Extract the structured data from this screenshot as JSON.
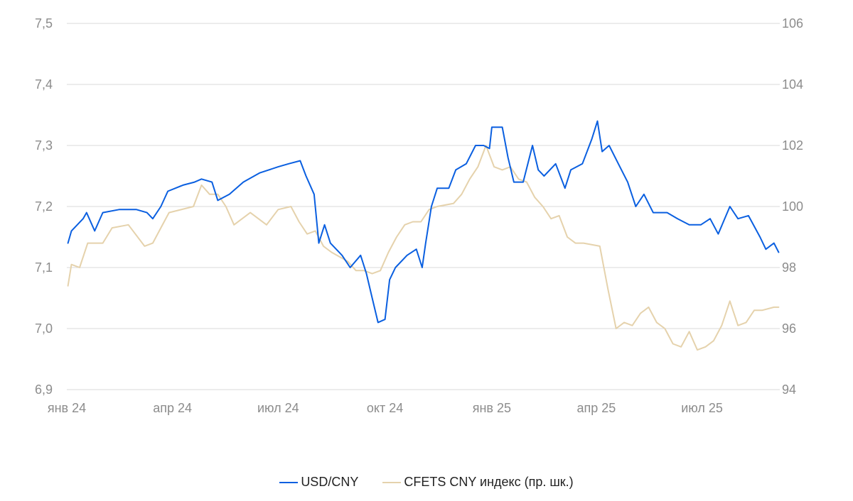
{
  "chart_data": {
    "type": "line",
    "x_ticks": [
      "янв 24",
      "апр 24",
      "июл 24",
      "окт 24",
      "янв 25",
      "апр 25",
      "июл 25"
    ],
    "y_left": {
      "ticks": [
        "7,5",
        "7,4",
        "7,3",
        "7,2",
        "7,1",
        "7,0",
        "6,9"
      ],
      "min": 6.9,
      "max": 7.5
    },
    "y_right": {
      "ticks": [
        "106",
        "104",
        "102",
        "100",
        "98",
        "96",
        "94"
      ],
      "min": 94,
      "max": 106
    },
    "grid": true,
    "legend_position": "bottom",
    "series": [
      {
        "name": "USD/CNY",
        "axis": "left",
        "color": "#0a5fe0",
        "points": [
          [
            "2024-01-02",
            7.14
          ],
          [
            "2024-01-05",
            7.16
          ],
          [
            "2024-01-10",
            7.17
          ],
          [
            "2024-01-15",
            7.18
          ],
          [
            "2024-01-18",
            7.19
          ],
          [
            "2024-01-25",
            7.16
          ],
          [
            "2024-02-01",
            7.19
          ],
          [
            "2024-02-15",
            7.195
          ],
          [
            "2024-03-01",
            7.195
          ],
          [
            "2024-03-10",
            7.19
          ],
          [
            "2024-03-15",
            7.18
          ],
          [
            "2024-03-22",
            7.2
          ],
          [
            "2024-03-28",
            7.225
          ],
          [
            "2024-04-10",
            7.235
          ],
          [
            "2024-04-20",
            7.24
          ],
          [
            "2024-04-26",
            7.245
          ],
          [
            "2024-05-05",
            7.24
          ],
          [
            "2024-05-10",
            7.21
          ],
          [
            "2024-05-20",
            7.22
          ],
          [
            "2024-06-01",
            7.24
          ],
          [
            "2024-06-15",
            7.255
          ],
          [
            "2024-07-01",
            7.265
          ],
          [
            "2024-07-10",
            7.27
          ],
          [
            "2024-07-20",
            7.275
          ],
          [
            "2024-07-25",
            7.25
          ],
          [
            "2024-08-01",
            7.22
          ],
          [
            "2024-08-05",
            7.14
          ],
          [
            "2024-08-10",
            7.17
          ],
          [
            "2024-08-15",
            7.14
          ],
          [
            "2024-08-25",
            7.12
          ],
          [
            "2024-09-01",
            7.1
          ],
          [
            "2024-09-10",
            7.12
          ],
          [
            "2024-09-15",
            7.09
          ],
          [
            "2024-09-20",
            7.05
          ],
          [
            "2024-09-25",
            7.01
          ],
          [
            "2024-10-01",
            7.015
          ],
          [
            "2024-10-05",
            7.08
          ],
          [
            "2024-10-10",
            7.1
          ],
          [
            "2024-10-20",
            7.12
          ],
          [
            "2024-10-28",
            7.13
          ],
          [
            "2024-11-02",
            7.1
          ],
          [
            "2024-11-05",
            7.14
          ],
          [
            "2024-11-10",
            7.2
          ],
          [
            "2024-11-15",
            7.23
          ],
          [
            "2024-11-25",
            7.23
          ],
          [
            "2024-12-01",
            7.26
          ],
          [
            "2024-12-10",
            7.27
          ],
          [
            "2024-12-18",
            7.3
          ],
          [
            "2024-12-25",
            7.3
          ],
          [
            "2024-12-30",
            7.295
          ],
          [
            "2025-01-01",
            7.33
          ],
          [
            "2025-01-10",
            7.33
          ],
          [
            "2025-01-15",
            7.28
          ],
          [
            "2025-01-20",
            7.24
          ],
          [
            "2025-01-28",
            7.24
          ],
          [
            "2025-02-05",
            7.3
          ],
          [
            "2025-02-10",
            7.26
          ],
          [
            "2025-02-15",
            7.25
          ],
          [
            "2025-02-25",
            7.27
          ],
          [
            "2025-03-05",
            7.23
          ],
          [
            "2025-03-10",
            7.26
          ],
          [
            "2025-03-20",
            7.27
          ],
          [
            "2025-03-28",
            7.31
          ],
          [
            "2025-04-02",
            7.34
          ],
          [
            "2025-04-06",
            7.29
          ],
          [
            "2025-04-12",
            7.3
          ],
          [
            "2025-04-20",
            7.27
          ],
          [
            "2025-04-28",
            7.24
          ],
          [
            "2025-05-05",
            7.2
          ],
          [
            "2025-05-12",
            7.22
          ],
          [
            "2025-05-20",
            7.19
          ],
          [
            "2025-06-01",
            7.19
          ],
          [
            "2025-06-10",
            7.18
          ],
          [
            "2025-06-20",
            7.17
          ],
          [
            "2025-06-30",
            7.17
          ],
          [
            "2025-07-08",
            7.18
          ],
          [
            "2025-07-15",
            7.155
          ],
          [
            "2025-07-25",
            7.2
          ],
          [
            "2025-08-01",
            7.18
          ],
          [
            "2025-08-10",
            7.185
          ],
          [
            "2025-08-20",
            7.15
          ],
          [
            "2025-08-25",
            7.13
          ],
          [
            "2025-09-01",
            7.14
          ],
          [
            "2025-09-05",
            7.125
          ]
        ]
      },
      {
        "name": "CFETS CNY индекс (пр. шк.)",
        "axis": "right",
        "color": "#e5d2ac",
        "points": [
          [
            "2024-01-02",
            97.4
          ],
          [
            "2024-01-05",
            98.1
          ],
          [
            "2024-01-12",
            98.0
          ],
          [
            "2024-01-19",
            98.8
          ],
          [
            "2024-02-01",
            98.8
          ],
          [
            "2024-02-09",
            99.3
          ],
          [
            "2024-02-23",
            99.4
          ],
          [
            "2024-03-08",
            98.7
          ],
          [
            "2024-03-15",
            98.8
          ],
          [
            "2024-03-22",
            99.3
          ],
          [
            "2024-03-29",
            99.8
          ],
          [
            "2024-04-19",
            100.0
          ],
          [
            "2024-04-26",
            100.7
          ],
          [
            "2024-05-03",
            100.4
          ],
          [
            "2024-05-10",
            100.4
          ],
          [
            "2024-05-17",
            100.0
          ],
          [
            "2024-05-24",
            99.4
          ],
          [
            "2024-06-07",
            99.8
          ],
          [
            "2024-06-21",
            99.4
          ],
          [
            "2024-07-01",
            99.9
          ],
          [
            "2024-07-12",
            100.0
          ],
          [
            "2024-07-19",
            99.5
          ],
          [
            "2024-07-26",
            99.1
          ],
          [
            "2024-08-02",
            99.2
          ],
          [
            "2024-08-09",
            98.7
          ],
          [
            "2024-08-16",
            98.5
          ],
          [
            "2024-08-30",
            98.2
          ],
          [
            "2024-09-06",
            97.9
          ],
          [
            "2024-09-13",
            97.9
          ],
          [
            "2024-09-20",
            97.8
          ],
          [
            "2024-09-27",
            97.9
          ],
          [
            "2024-10-04",
            98.5
          ],
          [
            "2024-10-11",
            99.0
          ],
          [
            "2024-10-18",
            99.4
          ],
          [
            "2024-10-25",
            99.5
          ],
          [
            "2024-11-01",
            99.5
          ],
          [
            "2024-11-08",
            99.9
          ],
          [
            "2024-11-15",
            100.0
          ],
          [
            "2024-11-29",
            100.1
          ],
          [
            "2024-12-06",
            100.4
          ],
          [
            "2024-12-13",
            100.9
          ],
          [
            "2024-12-20",
            101.3
          ],
          [
            "2024-12-27",
            102.0
          ],
          [
            "2025-01-03",
            101.3
          ],
          [
            "2025-01-10",
            101.2
          ],
          [
            "2025-01-17",
            101.3
          ],
          [
            "2025-01-24",
            100.9
          ],
          [
            "2025-01-31",
            100.8
          ],
          [
            "2025-02-07",
            100.3
          ],
          [
            "2025-02-14",
            100.0
          ],
          [
            "2025-02-21",
            99.6
          ],
          [
            "2025-02-28",
            99.7
          ],
          [
            "2025-03-07",
            99.0
          ],
          [
            "2025-03-14",
            98.8
          ],
          [
            "2025-03-21",
            98.8
          ],
          [
            "2025-04-04",
            98.7
          ],
          [
            "2025-04-11",
            97.3
          ],
          [
            "2025-04-18",
            96.0
          ],
          [
            "2025-04-25",
            96.2
          ],
          [
            "2025-05-02",
            96.1
          ],
          [
            "2025-05-09",
            96.5
          ],
          [
            "2025-05-16",
            96.7
          ],
          [
            "2025-05-23",
            96.2
          ],
          [
            "2025-05-30",
            96.0
          ],
          [
            "2025-06-06",
            95.5
          ],
          [
            "2025-06-13",
            95.4
          ],
          [
            "2025-06-20",
            95.9
          ],
          [
            "2025-06-27",
            95.3
          ],
          [
            "2025-07-04",
            95.4
          ],
          [
            "2025-07-11",
            95.6
          ],
          [
            "2025-07-18",
            96.1
          ],
          [
            "2025-07-25",
            96.9
          ],
          [
            "2025-08-01",
            96.1
          ],
          [
            "2025-08-08",
            96.2
          ],
          [
            "2025-08-15",
            96.6
          ],
          [
            "2025-08-22",
            96.6
          ],
          [
            "2025-09-01",
            96.7
          ],
          [
            "2025-09-05",
            96.7
          ]
        ]
      }
    ]
  }
}
